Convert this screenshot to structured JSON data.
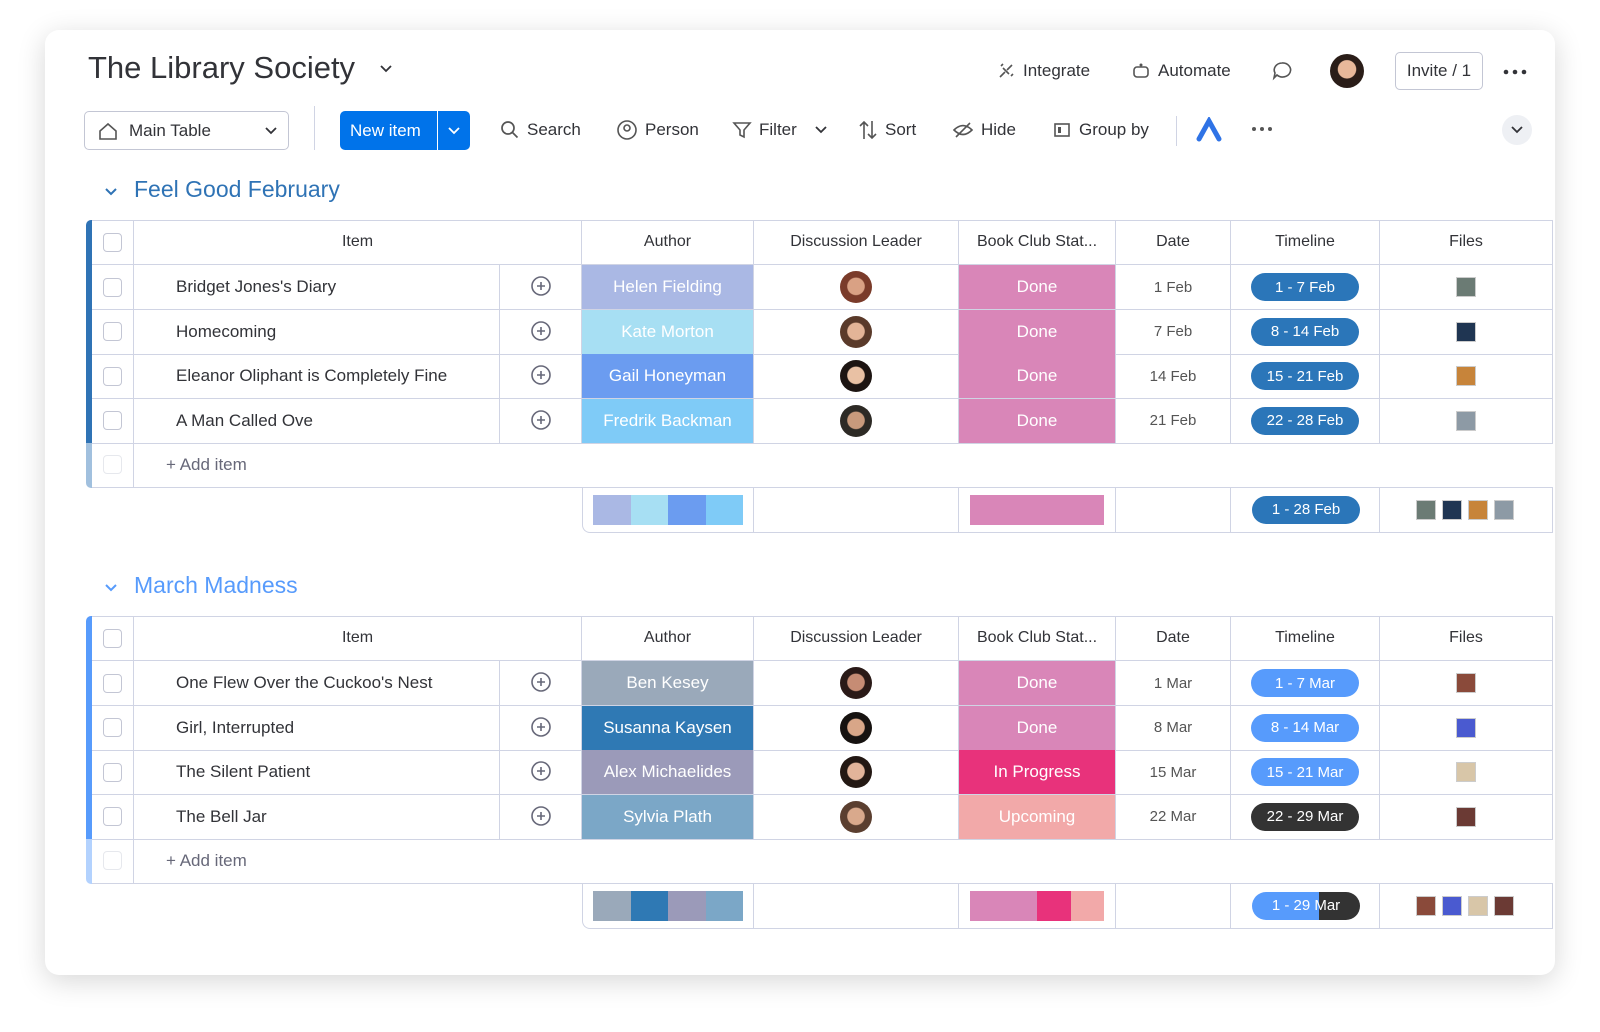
{
  "header": {
    "title": "The Library Society",
    "integrate": "Integrate",
    "automate": "Automate",
    "invite": "Invite / 1"
  },
  "toolbar": {
    "view": "Main Table",
    "new_item": "New item",
    "search": "Search",
    "person": "Person",
    "filter": "Filter",
    "sort": "Sort",
    "hide": "Hide",
    "group_by": "Group by"
  },
  "columns": [
    "Item",
    "Author",
    "Discussion Leader",
    "Book Club Stat...",
    "Date",
    "Timeline",
    "Files"
  ],
  "groups": [
    {
      "name": "Feel Good February",
      "color": "#2f73b5",
      "rows": [
        {
          "item": "Bridget Jones's Diary",
          "author": "Helen Fielding",
          "author_color": "#aab8e4",
          "status": "Done",
          "status_color": "#d986b8",
          "date": "1 Feb",
          "timeline": "1 - 7 Feb",
          "timeline_color": "#2b76b9"
        },
        {
          "item": "Homecoming",
          "author": "Kate Morton",
          "author_color": "#a7dff3",
          "status": "Done",
          "status_color": "#d986b8",
          "date": "7 Feb",
          "timeline": "8 - 14 Feb",
          "timeline_color": "#2b76b9"
        },
        {
          "item": "Eleanor Oliphant is Completely Fine",
          "author": "Gail Honeyman",
          "author_color": "#6b9cf0",
          "status": "Done",
          "status_color": "#d986b8",
          "date": "14 Feb",
          "timeline": "15 - 21 Feb",
          "timeline_color": "#2b76b9"
        },
        {
          "item": "A Man Called Ove",
          "author": "Fredrik Backman",
          "author_color": "#7fcbf7",
          "status": "Done",
          "status_color": "#d986b8",
          "date": "21 Feb",
          "timeline": "22 - 28 Feb",
          "timeline_color": "#2b76b9"
        }
      ],
      "add_item": "+ Add item",
      "summary_timeline": "1 - 28 Feb"
    },
    {
      "name": "March Madness",
      "color": "#579bfc",
      "rows": [
        {
          "item": "One Flew Over the Cuckoo's Nest",
          "author": "Ben Kesey",
          "author_color": "#9aa9ba",
          "status": "Done",
          "status_color": "#d986b8",
          "date": "1 Mar",
          "timeline": "1 - 7 Mar",
          "timeline_color": "#579bfc"
        },
        {
          "item": "Girl, Interrupted",
          "author": "Susanna Kaysen",
          "author_color": "#2f79b4",
          "status": "Done",
          "status_color": "#d986b8",
          "date": "8 Mar",
          "timeline": "8 - 14 Mar",
          "timeline_color": "#579bfc"
        },
        {
          "item": "The Silent Patient",
          "author": "Alex Michaelides",
          "author_color": "#9b9ab9",
          "status": "In Progress",
          "status_color": "#e8327b",
          "date": "15 Mar",
          "timeline": "15 - 21 Mar",
          "timeline_color": "#579bfc"
        },
        {
          "item": "The Bell Jar",
          "author": "Sylvia Plath",
          "author_color": "#7ba7c7",
          "status": "Upcoming",
          "status_color": "#f2a9a9",
          "date": "22 Mar",
          "timeline": "22 - 29 Mar",
          "timeline_color": "#333333"
        }
      ],
      "add_item": "+ Add item",
      "summary_timeline": "1 - 29 Mar"
    }
  ]
}
